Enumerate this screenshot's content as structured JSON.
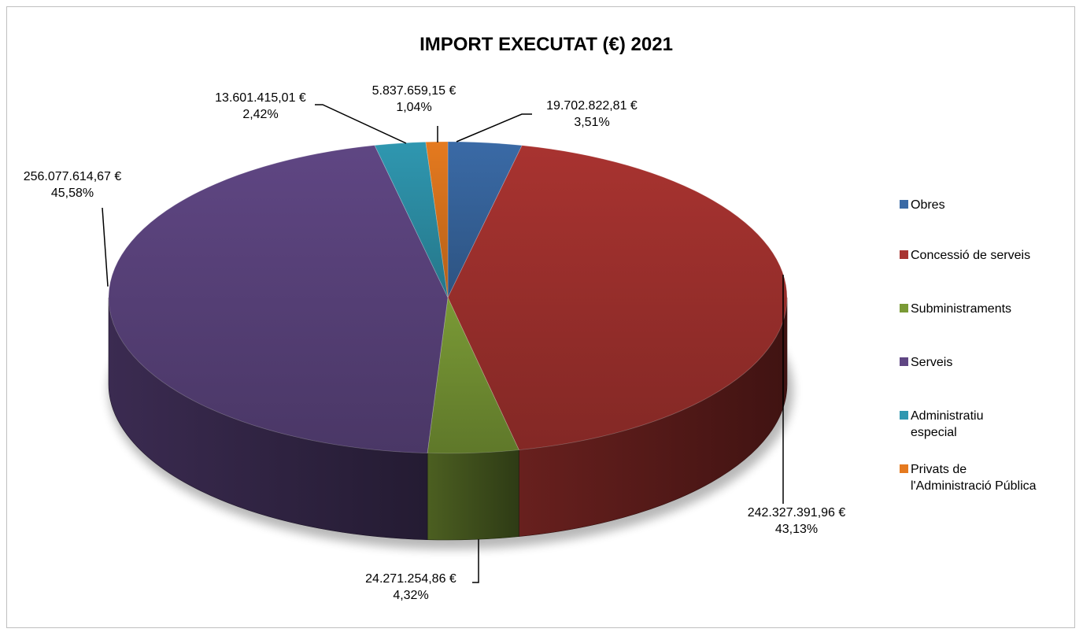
{
  "chart_data": {
    "type": "pie",
    "title": "IMPORT EXECUTAT (€) 2021",
    "legend_position": "right",
    "slices": [
      {
        "name": "Obres",
        "value": 19702822.81,
        "value_label": "19.702.822,81 €",
        "percent_label": "3,51%",
        "color": "#3a6aa6"
      },
      {
        "name": "Concessió de serveis",
        "value": 242327391.96,
        "value_label": "242.327.391,96 €",
        "percent_label": "43,13%",
        "color": "#a83330"
      },
      {
        "name": "Subministraments",
        "value": 24271254.86,
        "value_label": "24.271.254,86 €",
        "percent_label": "4,32%",
        "color": "#7a9a36"
      },
      {
        "name": "Serveis",
        "value": 256077614.67,
        "value_label": "256.077.614,67 €",
        "percent_label": "45,58%",
        "color": "#5f4683"
      },
      {
        "name": "Administratiu especial",
        "legend_lines": [
          "Administratiu",
          "especial"
        ],
        "value": 13601415.01,
        "value_label": "13.601.415,01 €",
        "percent_label": "2,42%",
        "color": "#2f97b0"
      },
      {
        "name": "Privats de l'Administració Pública",
        "legend_lines": [
          "Privats de",
          "l'Administració Pública"
        ],
        "value": 5837659.15,
        "value_label": "5.837.659,15 €",
        "percent_label": "1,04%",
        "color": "#e57a1f"
      }
    ]
  }
}
